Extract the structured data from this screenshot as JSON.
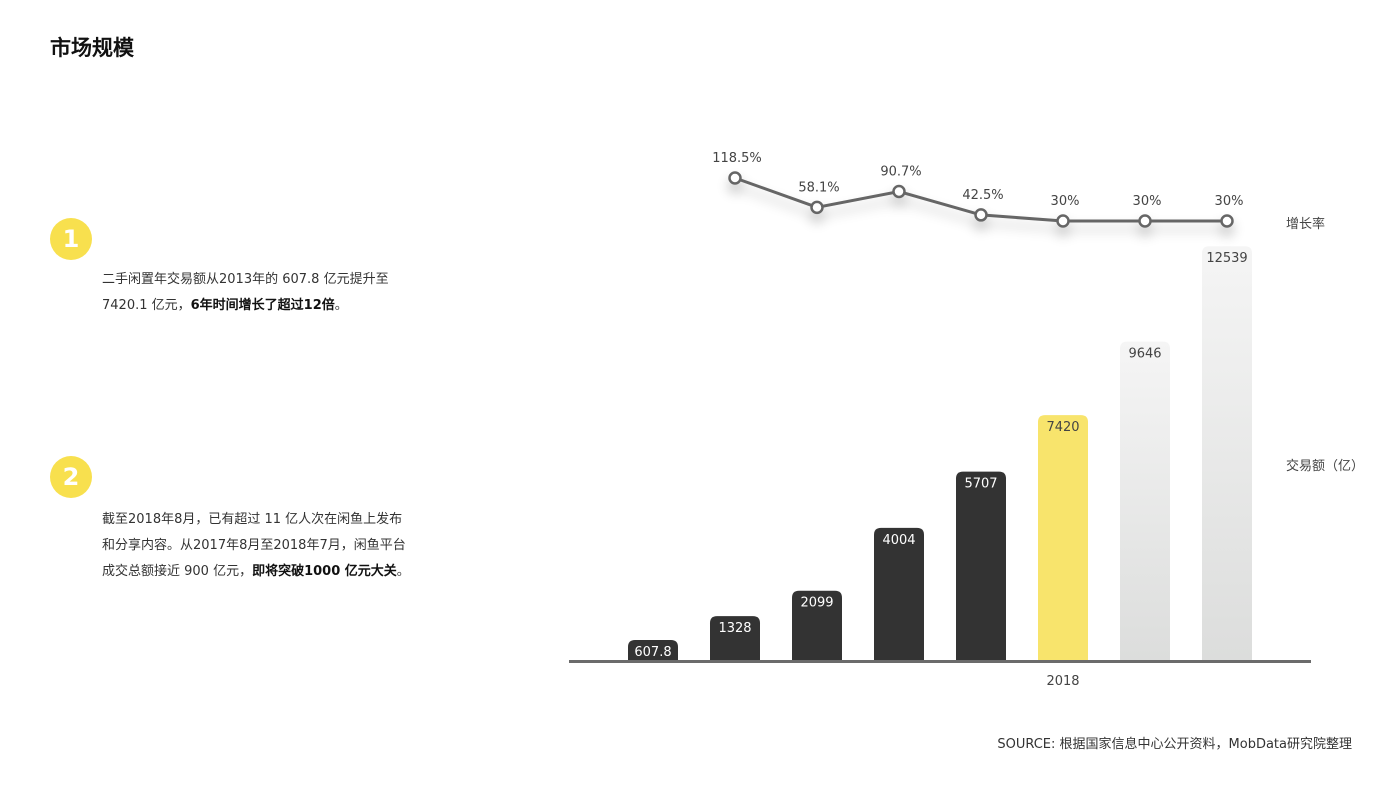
{
  "title": "市场规模",
  "points": [
    {
      "number": "1",
      "text_parts": [
        {
          "text": "二手闲置年交易额从2013年的 607.8 亿元提升至 7420.1 亿元，",
          "bold": false
        },
        {
          "text": "6年时间增长了超过12倍",
          "bold": true
        },
        {
          "text": "。",
          "bold": false
        }
      ]
    },
    {
      "number": "2",
      "text_parts": [
        {
          "text": "截至2018年8月，已有超过 11 亿人次在闲鱼上发布和分享内容。从2017年8月至2018年7月，闲鱼平台成交总额接近 900 亿元，",
          "bold": false
        },
        {
          "text": "即将突破1000 亿元大关",
          "bold": true
        },
        {
          "text": "。",
          "bold": false
        }
      ]
    }
  ],
  "source": "SOURCE: 根据国家信息中心公开资料，MobData研究院整理",
  "colors": {
    "actual": "#333333",
    "highlight": "#f8e46c",
    "forecast_top": "#f4f4f4",
    "forecast_bottom": "#dcdddc",
    "line": "#666666",
    "badge": "#f8e04e"
  },
  "chart_data": {
    "type": "bar+line",
    "bar_series": {
      "name": "交易额（亿）",
      "values": [
        607.8,
        1328,
        2099,
        4004,
        5707,
        7420,
        9646,
        12539
      ],
      "labels": [
        "607.8",
        "1328",
        "2099",
        "4004",
        "5707",
        "7420",
        "9646",
        "12539"
      ],
      "styles": [
        "actual",
        "actual",
        "actual",
        "actual",
        "actual",
        "highlight",
        "forecast",
        "forecast"
      ]
    },
    "line_series": {
      "name": "增长率",
      "values": [
        null,
        118.5,
        58.1,
        90.7,
        42.5,
        30,
        30,
        30
      ],
      "labels": [
        "",
        "118.5%",
        "58.1%",
        "90.7%",
        "42.5%",
        "30%",
        "30%",
        "30%"
      ]
    },
    "x_tick_labels": [
      "",
      "",
      "",
      "",
      "",
      "2018",
      "",
      ""
    ],
    "grid": false
  }
}
